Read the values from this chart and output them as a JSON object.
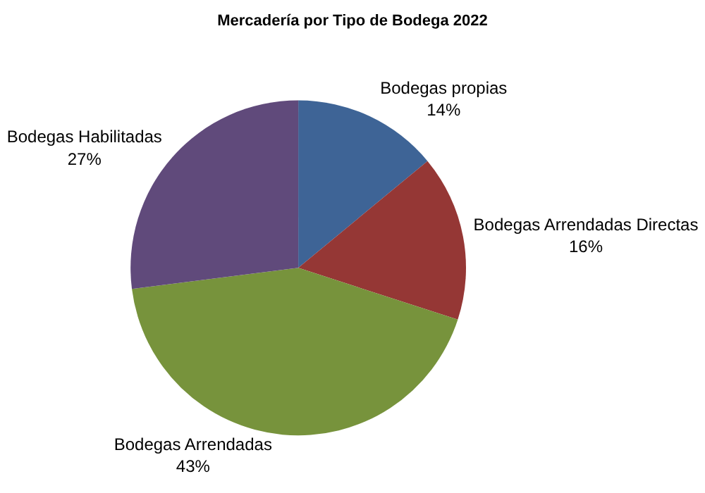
{
  "chart_data": {
    "type": "pie",
    "title": "Mercadería por Tipo de Bodega 2022",
    "categories": [
      "Bodegas propias",
      "Bodegas Arrendadas Directas",
      "Bodegas Arrendadas",
      "Bodegas Habilitadas"
    ],
    "values": [
      14,
      16,
      43,
      27
    ],
    "value_labels": [
      "14%",
      "16%",
      "43%",
      "27%"
    ],
    "colors": [
      "#3e6496",
      "#953735",
      "#77933c",
      "#604a7b"
    ],
    "legend": false
  }
}
